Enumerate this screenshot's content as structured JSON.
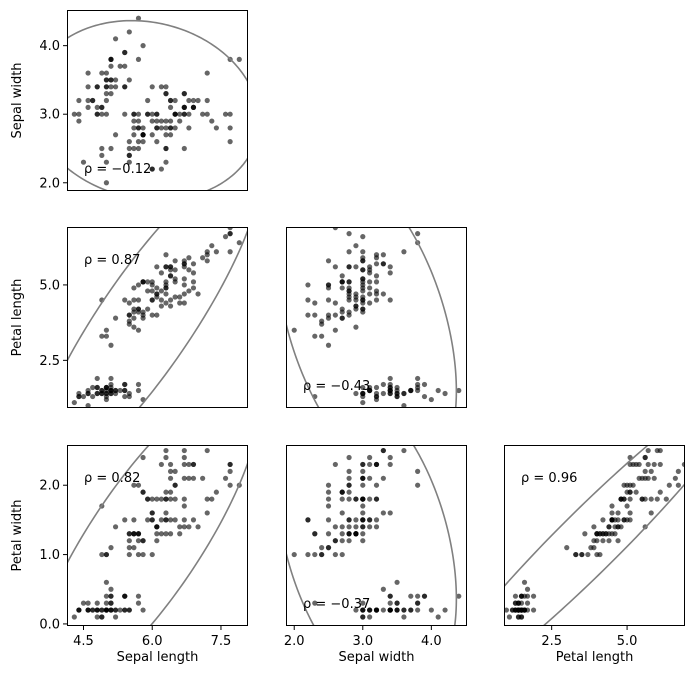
{
  "chart_data": {
    "type": "scatter",
    "variables": {
      "sl": "Sepal length",
      "sw": "Sepal width",
      "pl": "Petal length",
      "pw": "Petal width"
    },
    "ranges": {
      "sl": [
        4.14,
        8.09
      ],
      "sw": [
        1.88,
        4.52
      ],
      "pl": [
        0.92,
        6.92
      ],
      "pw": [
        -0.03,
        2.58
      ]
    },
    "ticks": {
      "sl": [
        4.5,
        6.0,
        7.5
      ],
      "sw": [
        2.0,
        3.0,
        4.0
      ],
      "pl": [
        2.5,
        5.0
      ],
      "pw": [
        0.0,
        1.0,
        2.0
      ]
    },
    "tick_labels": {
      "sl": [
        "4.5",
        "6.0",
        "7.5"
      ],
      "sw": [
        "2.0",
        "3.0",
        "4.0"
      ],
      "pl": [
        "2.5",
        "5.0"
      ],
      "pw": [
        "0.0",
        "1.0",
        "2.0"
      ]
    },
    "panels": [
      {
        "id": "sw-vs-sl",
        "x": "sl",
        "y": "sw",
        "row": 0,
        "col": 0,
        "rho": -0.12,
        "rho_label": "ρ = −0.12",
        "xlabel": "",
        "ylabel": "Sepal width"
      },
      {
        "id": "pl-vs-sl",
        "x": "sl",
        "y": "pl",
        "row": 1,
        "col": 0,
        "rho": 0.87,
        "rho_label": "ρ = 0.87",
        "xlabel": "",
        "ylabel": "Petal length"
      },
      {
        "id": "pl-vs-sw",
        "x": "sw",
        "y": "pl",
        "row": 1,
        "col": 1,
        "rho": -0.43,
        "rho_label": "ρ = −0.43",
        "xlabel": "",
        "ylabel": ""
      },
      {
        "id": "pw-vs-sl",
        "x": "sl",
        "y": "pw",
        "row": 2,
        "col": 0,
        "rho": 0.82,
        "rho_label": "ρ = 0.82",
        "xlabel": "Sepal length",
        "ylabel": "Petal width"
      },
      {
        "id": "pw-vs-sw",
        "x": "sw",
        "y": "pw",
        "row": 2,
        "col": 1,
        "rho": -0.37,
        "rho_label": "ρ = −0.37",
        "xlabel": "Sepal width",
        "ylabel": ""
      },
      {
        "id": "pw-vs-pl",
        "x": "pl",
        "y": "pw",
        "row": 2,
        "col": 2,
        "rho": 0.96,
        "rho_label": "ρ = 0.96",
        "xlabel": "Petal length",
        "ylabel": ""
      }
    ],
    "ellipse": {
      "n_std": 3
    },
    "colors": {
      "points": "#000000",
      "ellipse": "#808080",
      "axes": "#000000"
    },
    "points": {
      "fields": [
        "sl",
        "sw",
        "pl",
        "pw"
      ],
      "rows": [
        [
          5.1,
          3.5,
          1.4,
          0.2
        ],
        [
          4.9,
          3.0,
          1.4,
          0.2
        ],
        [
          4.7,
          3.2,
          1.3,
          0.2
        ],
        [
          4.6,
          3.1,
          1.5,
          0.2
        ],
        [
          5.0,
          3.6,
          1.4,
          0.2
        ],
        [
          5.4,
          3.9,
          1.7,
          0.4
        ],
        [
          4.6,
          3.4,
          1.4,
          0.3
        ],
        [
          5.0,
          3.4,
          1.5,
          0.2
        ],
        [
          4.4,
          2.9,
          1.4,
          0.2
        ],
        [
          4.9,
          3.1,
          1.5,
          0.1
        ],
        [
          5.4,
          3.7,
          1.5,
          0.2
        ],
        [
          4.8,
          3.4,
          1.6,
          0.2
        ],
        [
          4.8,
          3.0,
          1.4,
          0.1
        ],
        [
          4.3,
          3.0,
          1.1,
          0.1
        ],
        [
          5.8,
          4.0,
          1.2,
          0.2
        ],
        [
          5.7,
          4.4,
          1.5,
          0.4
        ],
        [
          5.4,
          3.9,
          1.3,
          0.4
        ],
        [
          5.1,
          3.5,
          1.4,
          0.3
        ],
        [
          5.7,
          3.8,
          1.7,
          0.3
        ],
        [
          5.1,
          3.8,
          1.5,
          0.3
        ],
        [
          5.4,
          3.4,
          1.7,
          0.2
        ],
        [
          5.1,
          3.7,
          1.5,
          0.4
        ],
        [
          4.6,
          3.6,
          1.0,
          0.2
        ],
        [
          5.1,
          3.3,
          1.7,
          0.5
        ],
        [
          4.8,
          3.4,
          1.9,
          0.2
        ],
        [
          5.0,
          3.0,
          1.6,
          0.2
        ],
        [
          5.0,
          3.4,
          1.6,
          0.4
        ],
        [
          5.2,
          3.5,
          1.5,
          0.2
        ],
        [
          5.2,
          3.4,
          1.4,
          0.2
        ],
        [
          4.7,
          3.2,
          1.6,
          0.2
        ],
        [
          4.8,
          3.1,
          1.6,
          0.2
        ],
        [
          5.4,
          3.4,
          1.5,
          0.4
        ],
        [
          5.2,
          4.1,
          1.5,
          0.1
        ],
        [
          5.5,
          4.2,
          1.4,
          0.2
        ],
        [
          4.9,
          3.1,
          1.5,
          0.2
        ],
        [
          5.0,
          3.2,
          1.2,
          0.2
        ],
        [
          5.5,
          3.5,
          1.3,
          0.2
        ],
        [
          4.9,
          3.6,
          1.4,
          0.1
        ],
        [
          4.4,
          3.0,
          1.3,
          0.2
        ],
        [
          5.1,
          3.4,
          1.5,
          0.2
        ],
        [
          5.0,
          3.5,
          1.3,
          0.3
        ],
        [
          4.5,
          2.3,
          1.3,
          0.3
        ],
        [
          4.4,
          3.2,
          1.3,
          0.2
        ],
        [
          5.0,
          3.5,
          1.6,
          0.6
        ],
        [
          5.1,
          3.8,
          1.9,
          0.4
        ],
        [
          4.8,
          3.0,
          1.4,
          0.3
        ],
        [
          5.1,
          3.8,
          1.6,
          0.2
        ],
        [
          4.6,
          3.2,
          1.4,
          0.2
        ],
        [
          5.3,
          3.7,
          1.5,
          0.2
        ],
        [
          5.0,
          3.3,
          1.4,
          0.2
        ],
        [
          7.0,
          3.2,
          4.7,
          1.4
        ],
        [
          6.4,
          3.2,
          4.5,
          1.5
        ],
        [
          6.9,
          3.1,
          4.9,
          1.5
        ],
        [
          5.5,
          2.3,
          4.0,
          1.3
        ],
        [
          6.5,
          2.8,
          4.6,
          1.5
        ],
        [
          5.7,
          2.8,
          4.5,
          1.3
        ],
        [
          6.3,
          3.3,
          4.7,
          1.6
        ],
        [
          4.9,
          2.4,
          3.3,
          1.0
        ],
        [
          6.6,
          2.9,
          4.6,
          1.3
        ],
        [
          5.2,
          2.7,
          3.9,
          1.4
        ],
        [
          5.0,
          2.0,
          3.5,
          1.0
        ],
        [
          5.9,
          3.0,
          4.2,
          1.5
        ],
        [
          6.0,
          2.2,
          4.0,
          1.0
        ],
        [
          6.1,
          2.9,
          4.7,
          1.4
        ],
        [
          5.6,
          2.9,
          3.6,
          1.3
        ],
        [
          6.7,
          3.1,
          4.4,
          1.4
        ],
        [
          5.6,
          3.0,
          4.5,
          1.5
        ],
        [
          5.8,
          2.7,
          4.1,
          1.0
        ],
        [
          6.2,
          2.2,
          4.5,
          1.5
        ],
        [
          5.6,
          2.5,
          3.9,
          1.1
        ],
        [
          5.9,
          3.2,
          4.8,
          1.8
        ],
        [
          6.1,
          2.8,
          4.0,
          1.3
        ],
        [
          6.3,
          2.5,
          4.9,
          1.5
        ],
        [
          6.1,
          2.8,
          4.7,
          1.2
        ],
        [
          6.4,
          2.9,
          4.3,
          1.3
        ],
        [
          6.6,
          3.0,
          4.4,
          1.4
        ],
        [
          6.8,
          2.8,
          4.8,
          1.4
        ],
        [
          6.7,
          3.0,
          5.0,
          1.7
        ],
        [
          6.0,
          2.9,
          4.5,
          1.5
        ],
        [
          5.7,
          2.6,
          3.5,
          1.0
        ],
        [
          5.5,
          2.4,
          3.8,
          1.1
        ],
        [
          5.5,
          2.4,
          3.7,
          1.0
        ],
        [
          5.8,
          2.7,
          3.9,
          1.2
        ],
        [
          6.0,
          2.7,
          5.1,
          1.6
        ],
        [
          5.4,
          3.0,
          4.5,
          1.5
        ],
        [
          6.0,
          3.4,
          4.5,
          1.6
        ],
        [
          6.7,
          3.1,
          4.7,
          1.5
        ],
        [
          6.3,
          2.3,
          4.4,
          1.3
        ],
        [
          5.6,
          3.0,
          4.1,
          1.3
        ],
        [
          5.5,
          2.5,
          4.0,
          1.3
        ],
        [
          5.5,
          2.6,
          4.4,
          1.2
        ],
        [
          6.1,
          3.0,
          4.6,
          1.4
        ],
        [
          5.8,
          2.6,
          4.0,
          1.2
        ],
        [
          5.0,
          2.3,
          3.3,
          1.0
        ],
        [
          5.6,
          2.7,
          4.2,
          1.3
        ],
        [
          5.7,
          3.0,
          4.2,
          1.2
        ],
        [
          5.7,
          2.9,
          4.2,
          1.3
        ],
        [
          6.2,
          2.9,
          4.3,
          1.3
        ],
        [
          5.1,
          2.5,
          3.0,
          1.1
        ],
        [
          5.7,
          2.8,
          4.1,
          1.3
        ],
        [
          6.3,
          3.3,
          6.0,
          2.5
        ],
        [
          5.8,
          2.7,
          5.1,
          1.9
        ],
        [
          7.1,
          3.0,
          5.9,
          2.1
        ],
        [
          6.3,
          2.9,
          5.6,
          1.8
        ],
        [
          6.5,
          3.0,
          5.8,
          2.2
        ],
        [
          7.6,
          3.0,
          6.6,
          2.1
        ],
        [
          4.9,
          2.5,
          4.5,
          1.7
        ],
        [
          7.3,
          2.9,
          6.3,
          1.8
        ],
        [
          6.7,
          2.5,
          5.8,
          1.8
        ],
        [
          7.2,
          3.6,
          6.1,
          2.5
        ],
        [
          6.5,
          3.2,
          5.1,
          2.0
        ],
        [
          6.4,
          2.7,
          5.3,
          1.9
        ],
        [
          6.8,
          3.0,
          5.5,
          2.1
        ],
        [
          5.7,
          2.5,
          5.0,
          2.0
        ],
        [
          5.8,
          2.8,
          5.1,
          2.4
        ],
        [
          6.4,
          3.2,
          5.3,
          2.3
        ],
        [
          6.5,
          3.0,
          5.5,
          1.8
        ],
        [
          7.7,
          3.8,
          6.7,
          2.2
        ],
        [
          7.7,
          2.6,
          6.9,
          2.3
        ],
        [
          6.0,
          2.2,
          5.0,
          1.5
        ],
        [
          6.9,
          3.2,
          5.7,
          2.3
        ],
        [
          5.6,
          2.8,
          4.9,
          2.0
        ],
        [
          7.7,
          2.8,
          6.7,
          2.0
        ],
        [
          6.3,
          2.7,
          4.9,
          1.8
        ],
        [
          6.7,
          3.3,
          5.7,
          2.1
        ],
        [
          7.2,
          3.2,
          6.0,
          1.8
        ],
        [
          6.2,
          2.8,
          4.8,
          1.8
        ],
        [
          6.1,
          3.0,
          4.9,
          1.8
        ],
        [
          6.4,
          2.8,
          5.6,
          2.1
        ],
        [
          7.2,
          3.0,
          5.8,
          1.6
        ],
        [
          7.4,
          2.8,
          6.1,
          1.9
        ],
        [
          7.9,
          3.8,
          6.4,
          2.0
        ],
        [
          6.4,
          2.8,
          5.6,
          2.2
        ],
        [
          6.3,
          2.8,
          5.1,
          1.5
        ],
        [
          6.1,
          2.6,
          5.6,
          1.4
        ],
        [
          7.7,
          3.0,
          6.1,
          2.3
        ],
        [
          6.3,
          3.4,
          5.6,
          2.4
        ],
        [
          6.4,
          3.1,
          5.5,
          1.8
        ],
        [
          6.0,
          3.0,
          4.8,
          1.8
        ],
        [
          6.9,
          3.1,
          5.4,
          2.1
        ],
        [
          6.7,
          3.1,
          5.6,
          2.4
        ],
        [
          6.9,
          3.1,
          5.1,
          2.3
        ],
        [
          5.8,
          2.7,
          5.1,
          1.9
        ],
        [
          6.8,
          3.2,
          5.9,
          2.3
        ],
        [
          6.7,
          3.3,
          5.7,
          2.5
        ],
        [
          6.7,
          3.0,
          5.2,
          2.3
        ],
        [
          6.3,
          2.5,
          5.0,
          1.9
        ],
        [
          6.5,
          3.0,
          5.2,
          2.0
        ],
        [
          6.2,
          3.4,
          5.4,
          2.3
        ],
        [
          5.9,
          3.0,
          5.1,
          1.8
        ]
      ]
    }
  }
}
